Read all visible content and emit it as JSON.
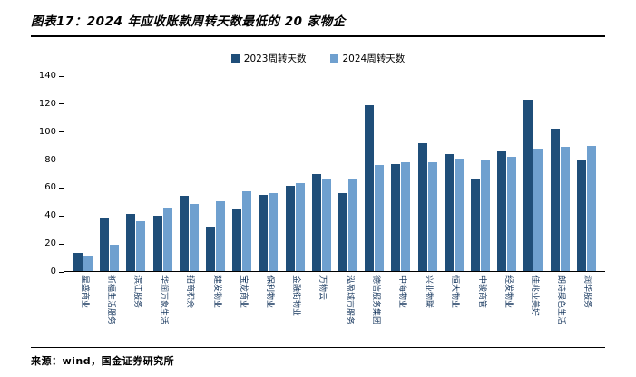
{
  "page": {
    "title": "图表17：2024 年应收账款周转天数最低的 20 家物企",
    "source": "来源：wind，国金证券研究所"
  },
  "chart_data": {
    "type": "bar",
    "title": "2024年应收账款周转天数最低的20家物企",
    "legend_position": "top",
    "grid": false,
    "ylim": [
      0,
      140
    ],
    "ytick_step": 20,
    "categories": [
      "星盛商业",
      "祈福生活服务",
      "滨江服务",
      "华润万象生活",
      "招商积余",
      "建发物业",
      "宝龙商业",
      "保利物业",
      "金融街物业",
      "万物云",
      "泓盈城市服务",
      "德信服务集团",
      "中海物业",
      "兴业物联",
      "恒大物业",
      "中骏商管",
      "经发物业",
      "佳兆业美好",
      "朗诗绿色生活",
      "润华服务"
    ],
    "series": [
      {
        "name": "2023周转天数",
        "color": "#1F4E79",
        "values": [
          13,
          38,
          41,
          40,
          54,
          32,
          44,
          55,
          61,
          70,
          56,
          119,
          77,
          92,
          84,
          66,
          86,
          123,
          102,
          80
        ]
      },
      {
        "name": "2024周转天数",
        "color": "#6FA0CF",
        "values": [
          11,
          19,
          36,
          45,
          48,
          50,
          57,
          56,
          63,
          66,
          66,
          76,
          78,
          78,
          81,
          80,
          82,
          88,
          89,
          90
        ]
      }
    ]
  }
}
